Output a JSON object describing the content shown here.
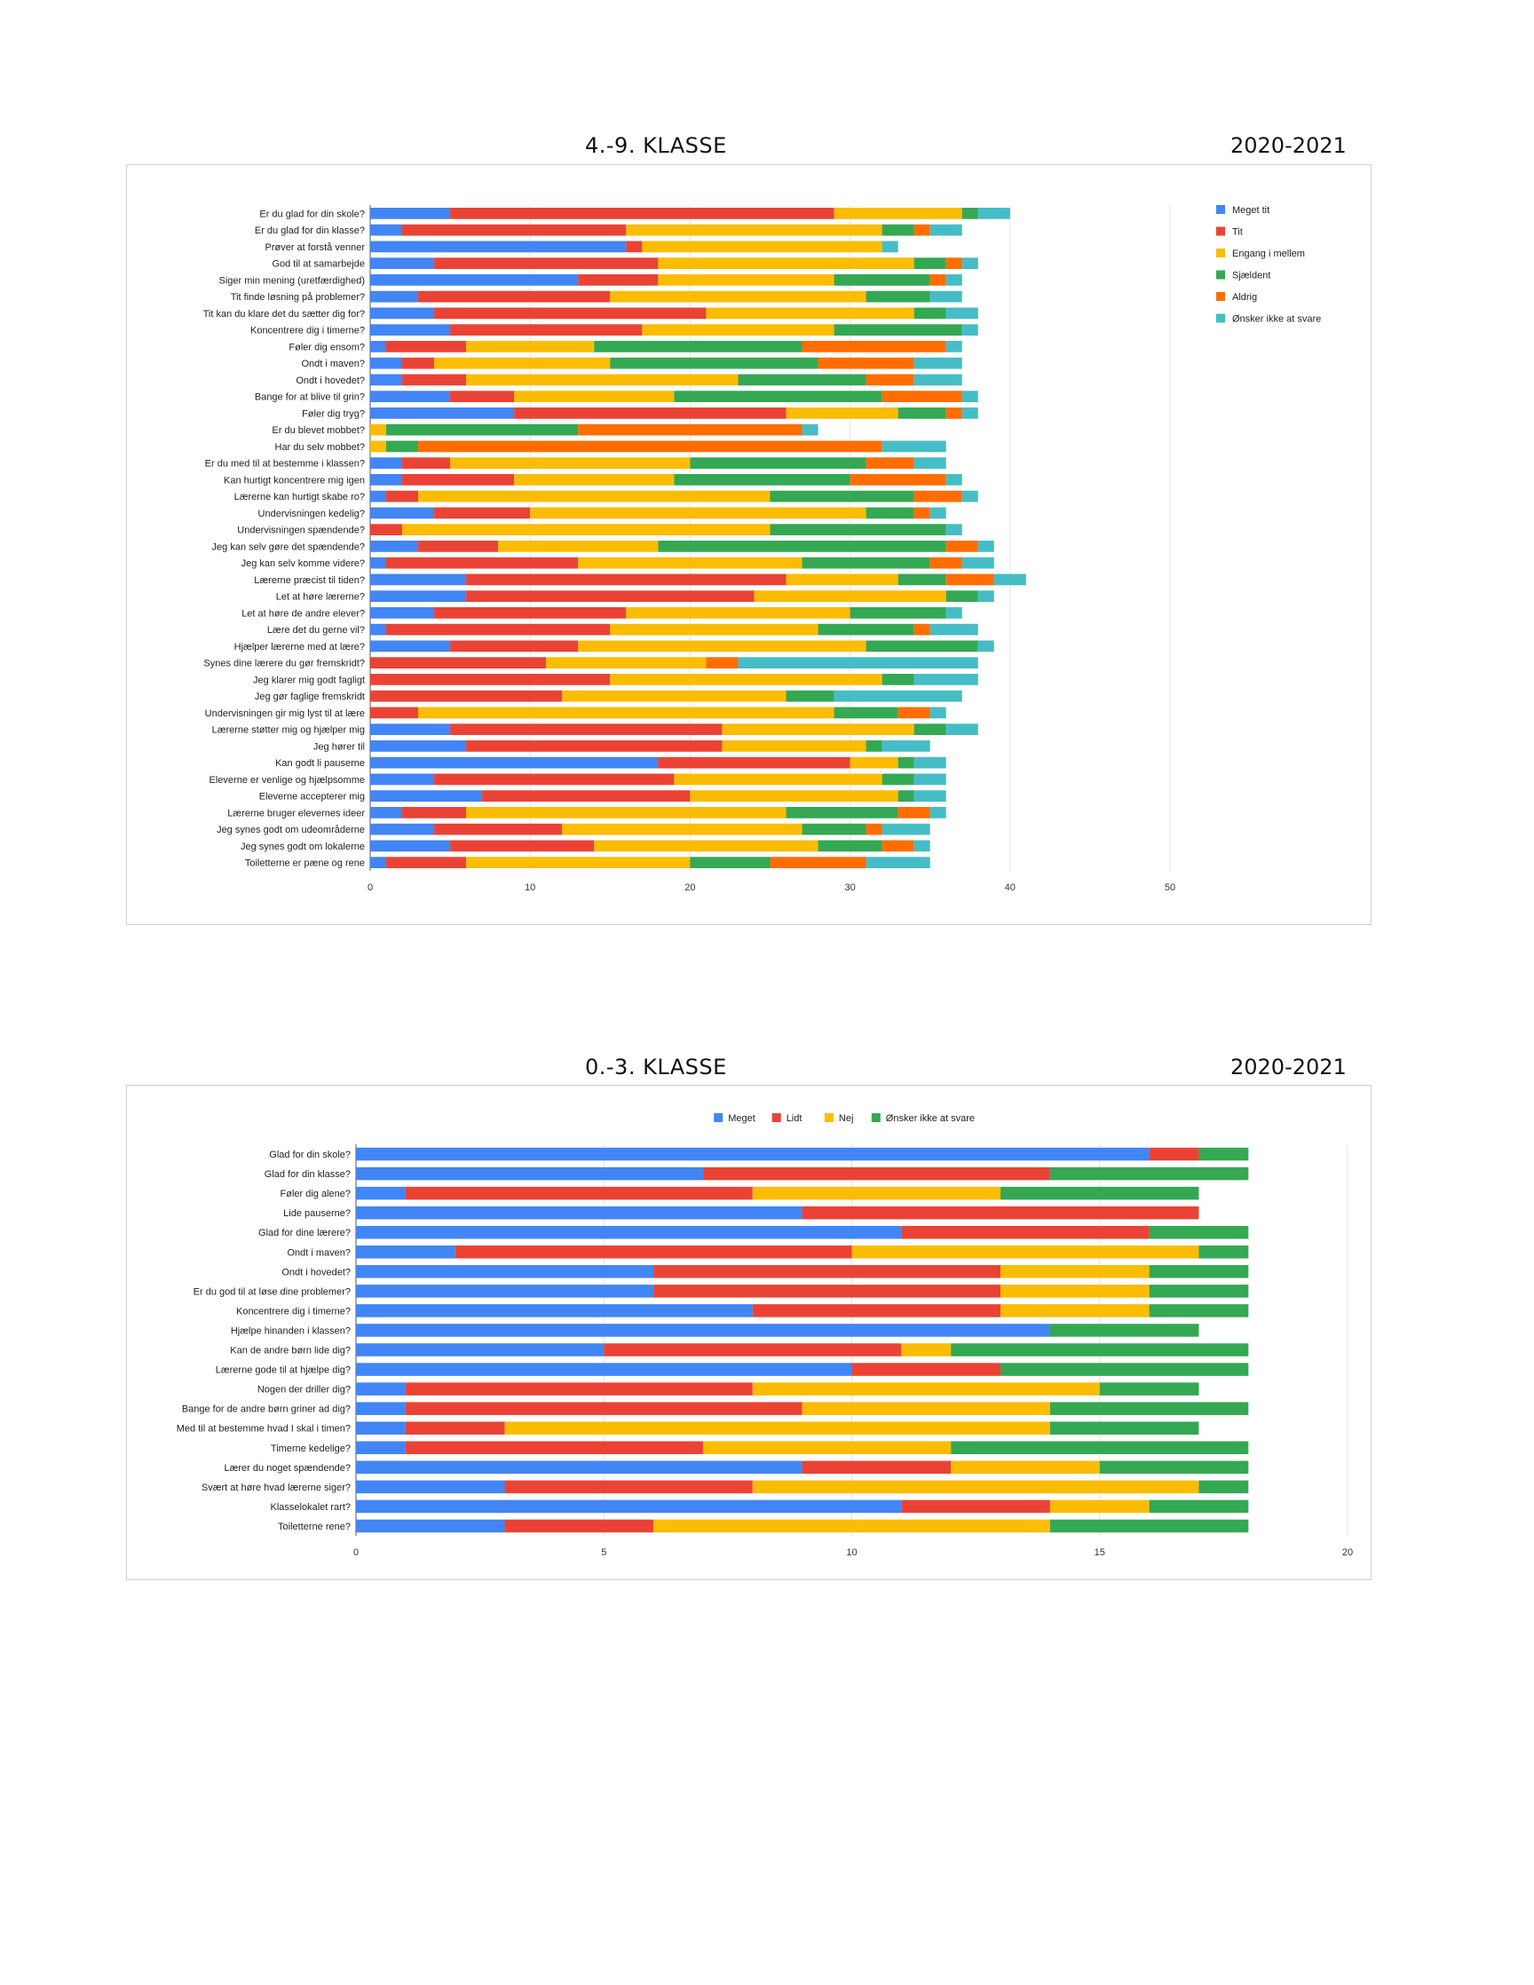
{
  "section1": {
    "title": "4.-9. KLASSE",
    "year": "2020-2021"
  },
  "section2": {
    "title": "0.-3. KLASSE",
    "year": "2020-2021"
  },
  "chart_data": [
    {
      "type": "bar",
      "orientation": "horizontal",
      "stacked": true,
      "xlim": [
        0,
        50
      ],
      "xticks": [
        0,
        10,
        20,
        30,
        40,
        50
      ],
      "legend_position": "right",
      "grid": true,
      "categories": [
        "Er du glad for din skole?",
        "Er du glad for din klasse?",
        "Prøver at forstå venner",
        "God til at samarbejde",
        "Siger min mening (uretfærdighed)",
        "Tit finde løsning på problemer?",
        "Tit kan du klare det du sætter dig for?",
        "Koncentrere dig i timerne?",
        "Føler dig ensom?",
        "Ondt i maven?",
        "Ondt i hovedet?",
        "Bange for at blive til grin?",
        "Føler dig tryg?",
        "Er du blevet mobbet?",
        "Har du selv mobbet?",
        "Er du med til at bestemme i klassen?",
        "Kan hurtigt koncentrere mig igen",
        "Lærerne kan hurtigt skabe ro?",
        "Undervisningen kedelig?",
        "Undervisningen spændende?",
        "Jeg kan selv gøre det spændende?",
        "Jeg kan selv komme videre?",
        "Lærerne præcist til tiden?",
        "Let at høre lærerne?",
        "Let at høre de andre elever?",
        "Lære det du gerne vil?",
        "Hjælper lærerne med at lære?",
        "Synes dine lærere du gør fremskridt?",
        "Jeg klarer mig godt fagligt",
        "Jeg gør faglige fremskridt",
        "Undervisningen gir mig lyst til at lære",
        "Lærerne støtter mig og hjælper mig",
        "Jeg hører til",
        "Kan godt li pauserne",
        "Eleverne er venlige og hjælpsomme",
        "Eleverne accepterer mig",
        "Lærerne bruger elevernes ideer",
        "Jeg synes godt om udeområderne",
        "Jeg synes godt om lokalerne",
        "Toiletterne er pæne og rene"
      ],
      "series": [
        {
          "name": "Meget tit",
          "color": "#4285f4",
          "values": [
            5,
            2,
            16,
            4,
            13,
            3,
            4,
            5,
            1,
            2,
            2,
            5,
            9,
            0,
            0,
            2,
            2,
            1,
            4,
            0,
            3,
            1,
            6,
            6,
            4,
            1,
            5,
            0,
            0,
            0,
            0,
            5,
            6,
            18,
            4,
            7,
            2,
            4,
            5,
            1
          ]
        },
        {
          "name": "Tit",
          "color": "#ea4335",
          "values": [
            24,
            14,
            1,
            14,
            5,
            12,
            17,
            12,
            5,
            2,
            4,
            4,
            17,
            0,
            0,
            3,
            7,
            2,
            6,
            2,
            5,
            12,
            20,
            18,
            12,
            14,
            8,
            11,
            15,
            12,
            3,
            17,
            16,
            12,
            15,
            13,
            4,
            8,
            9,
            5
          ]
        },
        {
          "name": "Engang i mellem",
          "color": "#fbbc04",
          "values": [
            8,
            16,
            15,
            16,
            11,
            16,
            13,
            12,
            8,
            11,
            17,
            10,
            7,
            1,
            1,
            15,
            10,
            22,
            21,
            23,
            10,
            14,
            7,
            12,
            14,
            13,
            18,
            10,
            17,
            14,
            26,
            12,
            9,
            3,
            13,
            13,
            20,
            15,
            14,
            14
          ]
        },
        {
          "name": "Sjældent",
          "color": "#34a853",
          "values": [
            1,
            2,
            0,
            2,
            6,
            4,
            2,
            8,
            13,
            13,
            8,
            13,
            3,
            12,
            2,
            11,
            11,
            9,
            3,
            11,
            18,
            8,
            3,
            2,
            6,
            6,
            7,
            0,
            2,
            3,
            4,
            2,
            1,
            1,
            2,
            1,
            7,
            4,
            4,
            5
          ]
        },
        {
          "name": "Aldrig",
          "color": "#ff6d01",
          "values": [
            0,
            1,
            0,
            1,
            1,
            0,
            0,
            0,
            9,
            6,
            3,
            5,
            1,
            14,
            29,
            3,
            6,
            3,
            1,
            0,
            2,
            2,
            3,
            0,
            0,
            1,
            0,
            2,
            0,
            0,
            2,
            0,
            0,
            0,
            0,
            0,
            2,
            1,
            2,
            6
          ]
        },
        {
          "name": "Ønsker ikke at svare",
          "color": "#46bdc6",
          "values": [
            2,
            2,
            1,
            1,
            1,
            2,
            2,
            1,
            1,
            3,
            3,
            1,
            1,
            1,
            4,
            2,
            1,
            1,
            1,
            1,
            1,
            2,
            2,
            1,
            1,
            3,
            1,
            15,
            4,
            8,
            1,
            2,
            3,
            2,
            2,
            2,
            1,
            3,
            1,
            4
          ]
        }
      ]
    },
    {
      "type": "bar",
      "orientation": "horizontal",
      "stacked": true,
      "xlim": [
        0,
        20
      ],
      "xticks": [
        0,
        5,
        10,
        15,
        20
      ],
      "legend_position": "top",
      "grid": true,
      "categories": [
        "Glad for din skole?",
        "Glad for din klasse?",
        "Føler dig alene?",
        "Lide pauserne?",
        "Glad for dine lærere?",
        "Ondt i maven?",
        "Ondt i hovedet?",
        "Er du god til at løse dine problemer?",
        "Koncentrere dig i timerne?",
        "Hjælpe hinanden i klassen?",
        "Kan de andre børn lide dig?",
        "Lærerne gode til at hjælpe dig?",
        "Nogen der driller dig?",
        "Bange for de andre børn griner ad dig?",
        "Med til at bestemme hvad I skal i timen?",
        "Timerne kedelige?",
        "Lærer du noget spændende?",
        "Svært at høre hvad lærerne siger?",
        "Klasselokalet rart?",
        "Toiletterne rene?"
      ],
      "series": [
        {
          "name": "Meget",
          "color": "#4285f4",
          "values": [
            16,
            7,
            1,
            9,
            11,
            2,
            6,
            6,
            8,
            14,
            5,
            10,
            1,
            1,
            1,
            1,
            9,
            3,
            11,
            3
          ]
        },
        {
          "name": "Lidt",
          "color": "#ea4335",
          "values": [
            1,
            7,
            7,
            8,
            5,
            8,
            7,
            7,
            5,
            0,
            6,
            3,
            7,
            8,
            2,
            6,
            3,
            5,
            3,
            3
          ]
        },
        {
          "name": "Nej",
          "color": "#fbbc04",
          "values": [
            0,
            0,
            5,
            0,
            0,
            7,
            3,
            3,
            3,
            0,
            1,
            0,
            7,
            5,
            11,
            5,
            3,
            9,
            2,
            8
          ]
        },
        {
          "name": "Ønsker ikke at svare",
          "color": "#34a853",
          "values": [
            1,
            4,
            4,
            0,
            2,
            1,
            2,
            2,
            2,
            3,
            6,
            5,
            2,
            4,
            3,
            6,
            3,
            1,
            2,
            4
          ]
        }
      ]
    }
  ]
}
